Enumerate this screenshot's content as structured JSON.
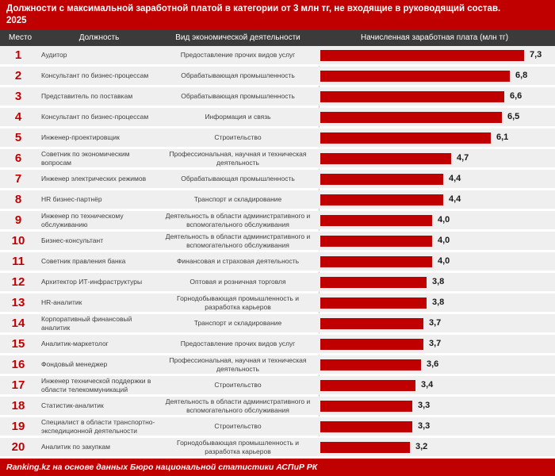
{
  "title": {
    "line1": "Должности с максимальной заработной платой в категории от 3 млн тг, не входящие в руководящий состав.",
    "line2": "2025"
  },
  "columns": {
    "rank": "Место",
    "position": "Должность",
    "activity": "Вид экономической деятельности",
    "salary": "Начисленная заработная плата (млн тг)"
  },
  "rows": [
    {
      "rank": "1",
      "position": "Аудитор",
      "activity": "Предоставление прочих видов услуг",
      "value": 7.3,
      "value_label": "7,3"
    },
    {
      "rank": "2",
      "position": "Консультант по бизнес-процессам",
      "activity": "Обрабатывающая промышленность",
      "value": 6.8,
      "value_label": "6,8"
    },
    {
      "rank": "3",
      "position": "Представитель по поставкам",
      "activity": "Обрабатывающая промышленность",
      "value": 6.6,
      "value_label": "6,6"
    },
    {
      "rank": "4",
      "position": "Консультант по бизнес-процессам",
      "activity": "Информация и связь",
      "value": 6.5,
      "value_label": "6,5"
    },
    {
      "rank": "5",
      "position": "Инженер-проектировщик",
      "activity": "Строительство",
      "value": 6.1,
      "value_label": "6,1"
    },
    {
      "rank": "6",
      "position": "Советник по экономическим вопросам",
      "activity": "Профессиональная, научная и техническая деятельность",
      "value": 4.7,
      "value_label": "4,7"
    },
    {
      "rank": "7",
      "position": "Инженер электрических режимов",
      "activity": "Обрабатывающая промышленность",
      "value": 4.4,
      "value_label": "4,4"
    },
    {
      "rank": "8",
      "position": "HR бизнес-партнёр",
      "activity": "Транспорт и складирование",
      "value": 4.4,
      "value_label": "4,4"
    },
    {
      "rank": "9",
      "position": "Инженер по техническому обслуживанию",
      "activity": "Деятельность в области административного и вспомогательного обслуживания",
      "value": 4.0,
      "value_label": "4,0"
    },
    {
      "rank": "10",
      "position": "Бизнес-консультант",
      "activity": "Деятельность в области административного и вспомогательного обслуживания",
      "value": 4.0,
      "value_label": "4,0"
    },
    {
      "rank": "11",
      "position": "Советник правления банка",
      "activity": "Финансовая и страховая деятельность",
      "value": 4.0,
      "value_label": "4,0"
    },
    {
      "rank": "12",
      "position": "Архитектор ИТ-инфраструктуры",
      "activity": "Оптовая и розничная торговля",
      "value": 3.8,
      "value_label": "3,8"
    },
    {
      "rank": "13",
      "position": "HR-аналитик",
      "activity": "Горнодобывающая промышленность и разработка карьеров",
      "value": 3.8,
      "value_label": "3,8"
    },
    {
      "rank": "14",
      "position": "Корпоративный финансовый аналитик",
      "activity": "Транспорт и складирование",
      "value": 3.7,
      "value_label": "3,7"
    },
    {
      "rank": "15",
      "position": "Аналитик-маркетолог",
      "activity": "Предоставление прочих видов услуг",
      "value": 3.7,
      "value_label": "3,7"
    },
    {
      "rank": "16",
      "position": "Фондовый менеджер",
      "activity": "Профессиональная, научная и техническая деятельность",
      "value": 3.6,
      "value_label": "3,6"
    },
    {
      "rank": "17",
      "position": "Инженер технической поддержки в области телекоммуникаций",
      "activity": "Строительство",
      "value": 3.4,
      "value_label": "3,4"
    },
    {
      "rank": "18",
      "position": "Статистик-аналитик",
      "activity": "Деятельность в области административного и вспомогательного обслуживания",
      "value": 3.3,
      "value_label": "3,3"
    },
    {
      "rank": "19",
      "position": "Специалист в области транспортно-экспедиционной деятельности",
      "activity": "Строительство",
      "value": 3.3,
      "value_label": "3,3"
    },
    {
      "rank": "20",
      "position": "Аналитик по закупкам",
      "activity": "Горнодобывающая промышленность и разработка карьеров",
      "value": 3.2,
      "value_label": "3,2"
    }
  ],
  "footer": {
    "text": "Ranking.kz на основе данных Бюро национальной статистики АСПиР РК"
  },
  "colors": {
    "accent_red": "#c00000",
    "header_dark": "#3b3b3b",
    "row_bg": "#efefef",
    "axis_dash": "#c8c8c8"
  },
  "chart_data": {
    "type": "bar",
    "orientation": "horizontal",
    "title": "Должности с максимальной заработной платой в категории от 3 млн тг, не входящие в руководящий состав. 2025",
    "xlabel": "Начисленная заработная плата (млн тг)",
    "ylabel": "Должность",
    "xmax": 7.3,
    "xlim": [
      0,
      7.3
    ],
    "grid": false,
    "legend": "none",
    "categories": [
      "Аудитор",
      "Консультант по бизнес-процессам",
      "Представитель по поставкам",
      "Консультант по бизнес-процессам",
      "Инженер-проектировщик",
      "Советник по экономическим вопросам",
      "Инженер электрических режимов",
      "HR бизнес-партнёр",
      "Инженер по техническому обслуживанию",
      "Бизнес-консультант",
      "Советник правления банка",
      "Архитектор ИТ-инфраструктуры",
      "HR-аналитик",
      "Корпоративный финансовый аналитик",
      "Аналитик-маркетолог",
      "Фондовый менеджер",
      "Инженер технической поддержки в области телекоммуникаций",
      "Статистик-аналитик",
      "Специалист в области транспортно-экспедиционной деятельности",
      "Аналитик по закупкам"
    ],
    "values": [
      7.3,
      6.8,
      6.6,
      6.5,
      6.1,
      4.7,
      4.4,
      4.4,
      4.0,
      4.0,
      4.0,
      3.8,
      3.8,
      3.7,
      3.7,
      3.6,
      3.4,
      3.3,
      3.3,
      3.2
    ],
    "bar_color": "#c00000"
  }
}
